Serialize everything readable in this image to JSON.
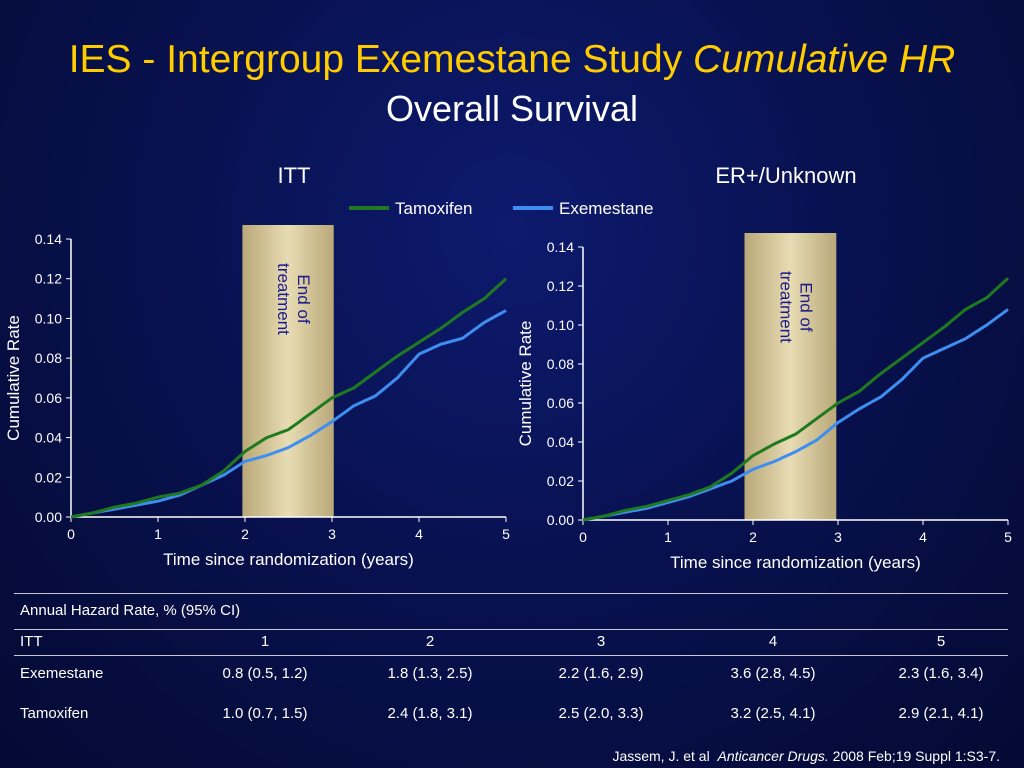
{
  "slide": {
    "title_main": "IES - Intergroup Exemestane Study",
    "title_italic": "Cumulative HR",
    "subtitle": "Overall Survival"
  },
  "legend": {
    "tamoxifen": "Tamoxifen",
    "exemestane": "Exemestane"
  },
  "colors": {
    "tamoxifen": "#1f7a1f",
    "exemestane": "#3d8ef0",
    "band": "#e8dcb4",
    "title": "#ffcc00"
  },
  "chart_data": [
    {
      "type": "line",
      "title": "ITT",
      "xlabel": "Time since randomization (years)",
      "ylabel": "Cumulative Rate",
      "xlim": [
        0,
        5
      ],
      "ylim": [
        0,
        0.14
      ],
      "xticks": [
        "0",
        "1",
        "2",
        "3",
        "4",
        "5"
      ],
      "yticks": [
        "0.00",
        "0.02",
        "0.04",
        "0.06",
        "0.08",
        "0.10",
        "0.12",
        "0.14"
      ],
      "band": {
        "x_start": 1.97,
        "x_end": 3.02,
        "label_line1": "End of",
        "label_line2": "treatment"
      },
      "series": [
        {
          "name": "Tamoxifen",
          "x": [
            0,
            0.25,
            0.5,
            0.75,
            1.0,
            1.25,
            1.5,
            1.75,
            2.0,
            2.25,
            2.5,
            2.75,
            3.0,
            3.25,
            3.5,
            3.75,
            4.0,
            4.25,
            4.5,
            4.75,
            5.0
          ],
          "y": [
            0,
            0.002,
            0.005,
            0.007,
            0.01,
            0.012,
            0.016,
            0.023,
            0.033,
            0.04,
            0.044,
            0.052,
            0.06,
            0.065,
            0.073,
            0.081,
            0.088,
            0.095,
            0.103,
            0.11,
            0.12
          ]
        },
        {
          "name": "Exemestane",
          "x": [
            0,
            0.25,
            0.5,
            0.75,
            1.0,
            1.25,
            1.5,
            1.75,
            2.0,
            2.25,
            2.5,
            2.75,
            3.0,
            3.25,
            3.5,
            3.75,
            4.0,
            4.25,
            4.5,
            4.75,
            5.0
          ],
          "y": [
            0,
            0.002,
            0.004,
            0.006,
            0.008,
            0.011,
            0.016,
            0.021,
            0.028,
            0.031,
            0.035,
            0.041,
            0.048,
            0.056,
            0.061,
            0.07,
            0.082,
            0.087,
            0.09,
            0.098,
            0.104
          ]
        }
      ]
    },
    {
      "type": "line",
      "title": "ER+/Unknown",
      "xlabel": "Time since randomization (years)",
      "ylabel": "Cumulative Rate",
      "xlim": [
        0,
        5
      ],
      "ylim": [
        0,
        0.14
      ],
      "xticks": [
        "0",
        "1",
        "2",
        "3",
        "4",
        "5"
      ],
      "yticks": [
        "0.00",
        "0.02",
        "0.04",
        "0.06",
        "0.08",
        "0.10",
        "0.12",
        "0.14"
      ],
      "band": {
        "x_start": 1.9,
        "x_end": 2.98,
        "label_line1": "End of",
        "label_line2": "treatment"
      },
      "series": [
        {
          "name": "Tamoxifen",
          "x": [
            0,
            0.25,
            0.5,
            0.75,
            1.0,
            1.25,
            1.5,
            1.75,
            2.0,
            2.25,
            2.5,
            2.75,
            3.0,
            3.25,
            3.5,
            3.75,
            4.0,
            4.25,
            4.5,
            4.75,
            5.0
          ],
          "y": [
            0,
            0.002,
            0.005,
            0.007,
            0.01,
            0.013,
            0.017,
            0.024,
            0.033,
            0.039,
            0.044,
            0.052,
            0.06,
            0.066,
            0.075,
            0.083,
            0.091,
            0.099,
            0.108,
            0.114,
            0.124
          ]
        },
        {
          "name": "Exemestane",
          "x": [
            0,
            0.25,
            0.5,
            0.75,
            1.0,
            1.25,
            1.5,
            1.75,
            2.0,
            2.25,
            2.5,
            2.75,
            3.0,
            3.25,
            3.5,
            3.75,
            4.0,
            4.25,
            4.5,
            4.75,
            5.0
          ],
          "y": [
            0,
            0.002,
            0.004,
            0.006,
            0.009,
            0.012,
            0.016,
            0.02,
            0.026,
            0.03,
            0.035,
            0.041,
            0.05,
            0.057,
            0.063,
            0.072,
            0.083,
            0.088,
            0.093,
            0.1,
            0.108
          ]
        }
      ]
    }
  ],
  "hazard_table": {
    "caption": "Annual Hazard Rate, % (95% CI)",
    "row_header": "ITT",
    "years": [
      "1",
      "2",
      "3",
      "4",
      "5"
    ],
    "rows": [
      {
        "label": "Exemestane",
        "values": [
          "0.8 (0.5, 1.2)",
          "1.8 (1.3, 2.5)",
          "2.2 (1.6, 2.9)",
          "3.6 (2.8, 4.5)",
          "2.3 (1.6, 3.4)"
        ]
      },
      {
        "label": "Tamoxifen",
        "values": [
          "1.0 (0.7, 1.5)",
          "2.4 (1.8, 3.1)",
          "2.5 (2.0, 3.3)",
          "3.2 (2.5, 4.1)",
          "2.9 (2.1, 4.1)"
        ]
      }
    ]
  },
  "citation": {
    "authors": "Jassem, J. et al",
    "journal": "Anticancer Drugs.",
    "details": "2008 Feb;19 Suppl 1:S3-7."
  }
}
